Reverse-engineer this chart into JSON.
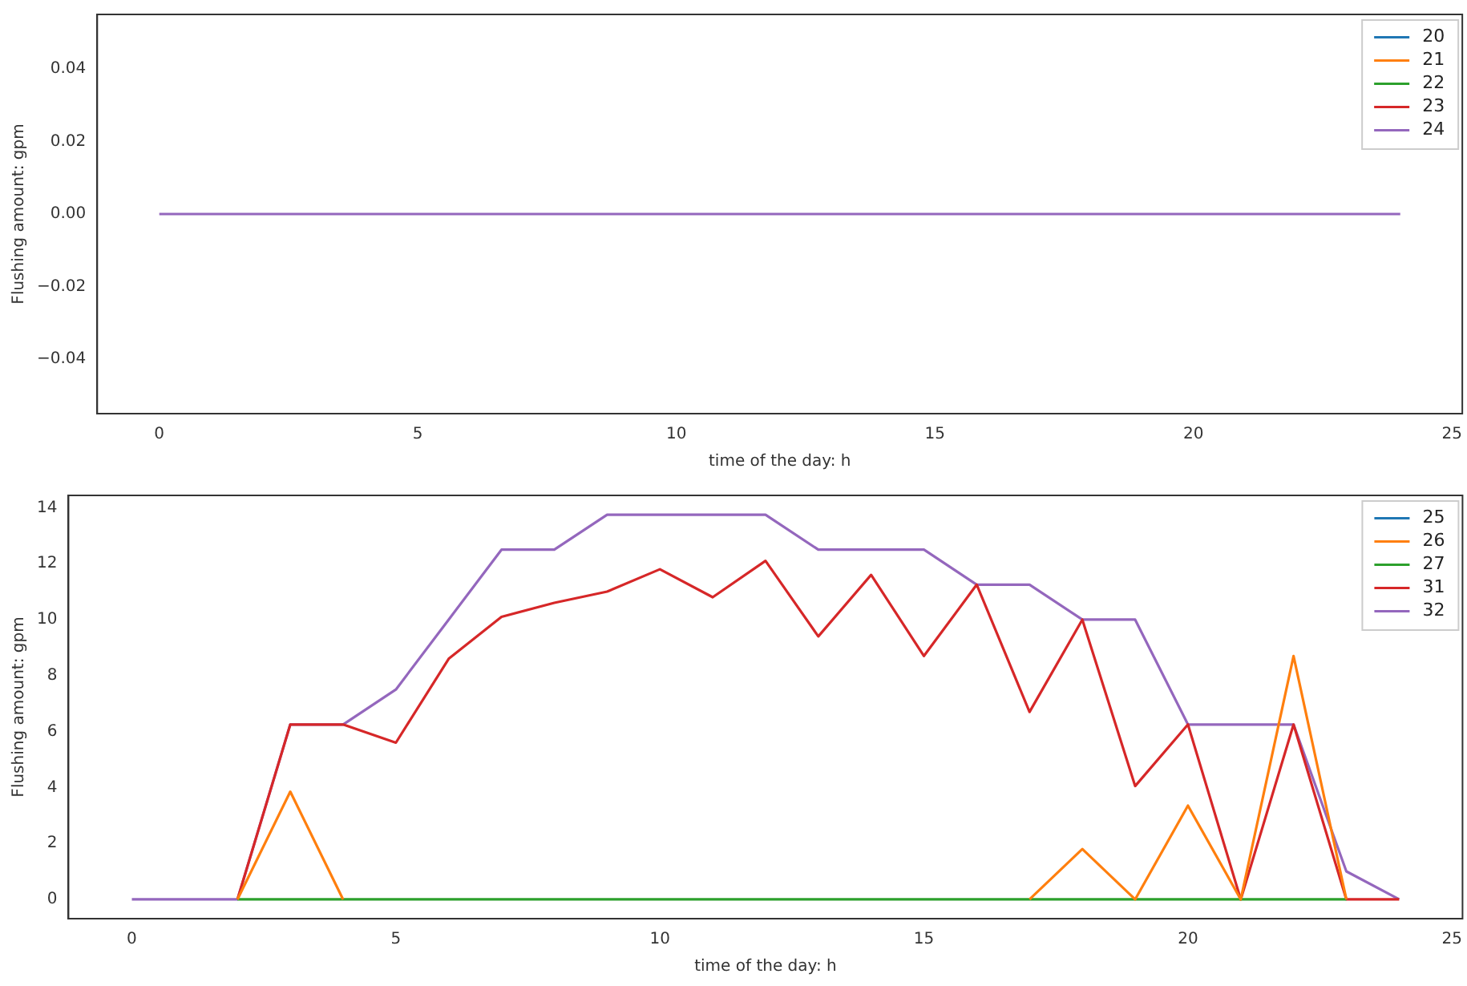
{
  "chart_data": [
    {
      "type": "line",
      "xlabel": "time of the day: h",
      "ylabel": "Flushing amount: gpm",
      "x": [
        0,
        1,
        2,
        3,
        4,
        5,
        6,
        7,
        8,
        9,
        10,
        11,
        12,
        13,
        14,
        15,
        16,
        17,
        18,
        19,
        20,
        21,
        22,
        23,
        24
      ],
      "xlim": [
        -1.2,
        25.2
      ],
      "xticks": [
        0,
        5,
        10,
        15,
        20,
        25
      ],
      "ylim": [
        -0.055,
        0.055
      ],
      "yticks": [
        {
          "value": -0.04,
          "label": "−0.04"
        },
        {
          "value": -0.02,
          "label": "−0.02"
        },
        {
          "value": 0,
          "label": "0.00"
        },
        {
          "value": 0.02,
          "label": "0.02"
        },
        {
          "value": 0.04,
          "label": "0.04"
        }
      ],
      "grid": false,
      "legend": "top right",
      "series": [
        {
          "name": "20",
          "color": "#1f77b4",
          "values": [
            null,
            null,
            null,
            null,
            null,
            null,
            null,
            null,
            null,
            null,
            null,
            null,
            null,
            null,
            null,
            null,
            null,
            null,
            null,
            null,
            null,
            null,
            null,
            null,
            null
          ]
        },
        {
          "name": "21",
          "color": "#ff7f0e",
          "values": [
            null,
            null,
            null,
            null,
            null,
            null,
            null,
            null,
            null,
            null,
            null,
            null,
            null,
            null,
            null,
            null,
            null,
            null,
            null,
            null,
            null,
            null,
            null,
            null,
            null
          ]
        },
        {
          "name": "22",
          "color": "#2ca02c",
          "values": [
            null,
            null,
            null,
            null,
            null,
            null,
            null,
            null,
            null,
            null,
            null,
            null,
            null,
            null,
            null,
            null,
            null,
            null,
            null,
            null,
            null,
            null,
            null,
            null,
            null
          ]
        },
        {
          "name": "23",
          "color": "#d62728",
          "values": [
            null,
            null,
            null,
            null,
            null,
            null,
            null,
            null,
            null,
            null,
            null,
            null,
            null,
            null,
            null,
            null,
            null,
            null,
            null,
            null,
            null,
            null,
            null,
            null,
            null
          ]
        },
        {
          "name": "24",
          "color": "#9467bd",
          "values": [
            0,
            0,
            0,
            0,
            0,
            0,
            0,
            0,
            0,
            0,
            0,
            0,
            0,
            0,
            0,
            0,
            0,
            0,
            0,
            0,
            0,
            0,
            0,
            0,
            0
          ]
        }
      ]
    },
    {
      "type": "line",
      "xlabel": "time of the day: h",
      "ylabel": "Flushing amount: gpm",
      "x": [
        0,
        1,
        2,
        3,
        4,
        5,
        6,
        7,
        8,
        9,
        10,
        11,
        12,
        13,
        14,
        15,
        16,
        17,
        18,
        19,
        20,
        21,
        22,
        23,
        24
      ],
      "xlim": [
        -1.2,
        25.2
      ],
      "xticks": [
        0,
        5,
        10,
        15,
        20,
        25
      ],
      "ylim": [
        -0.69,
        14.44
      ],
      "yticks": [
        0,
        2,
        4,
        6,
        8,
        10,
        12,
        14
      ],
      "grid": false,
      "legend": "top right",
      "series": [
        {
          "name": "25",
          "color": "#1f77b4",
          "values": [
            null,
            null,
            null,
            null,
            null,
            null,
            null,
            null,
            null,
            null,
            null,
            null,
            null,
            null,
            null,
            null,
            null,
            null,
            null,
            null,
            null,
            null,
            null,
            null,
            null
          ]
        },
        {
          "name": "26",
          "color": "#ff7f0e",
          "values": [
            null,
            null,
            0,
            3.85,
            0,
            null,
            null,
            null,
            null,
            null,
            null,
            null,
            null,
            null,
            null,
            null,
            null,
            0,
            1.8,
            0,
            3.35,
            0,
            8.7,
            0,
            null
          ]
        },
        {
          "name": "27",
          "color": "#2ca02c",
          "values": [
            null,
            null,
            0,
            0,
            0,
            0,
            0,
            0,
            0,
            0,
            0,
            0,
            0,
            0,
            0,
            0,
            0,
            0,
            0,
            0,
            0,
            0,
            0,
            0,
            null
          ]
        },
        {
          "name": "31",
          "color": "#d62728",
          "values": [
            null,
            null,
            0,
            6.25,
            6.25,
            5.6,
            8.6,
            10.1,
            10.6,
            11,
            11.8,
            10.8,
            12.1,
            9.4,
            11.6,
            8.7,
            11.25,
            6.7,
            10,
            4.05,
            6.25,
            0,
            6.25,
            0,
            0
          ]
        },
        {
          "name": "32",
          "color": "#9467bd",
          "values": [
            0,
            0,
            0,
            6.25,
            6.25,
            7.5,
            10,
            12.5,
            12.5,
            13.75,
            13.75,
            13.75,
            13.75,
            12.5,
            12.5,
            12.5,
            11.25,
            11.25,
            10,
            10,
            6.25,
            6.25,
            6.25,
            1,
            0
          ]
        }
      ]
    }
  ]
}
